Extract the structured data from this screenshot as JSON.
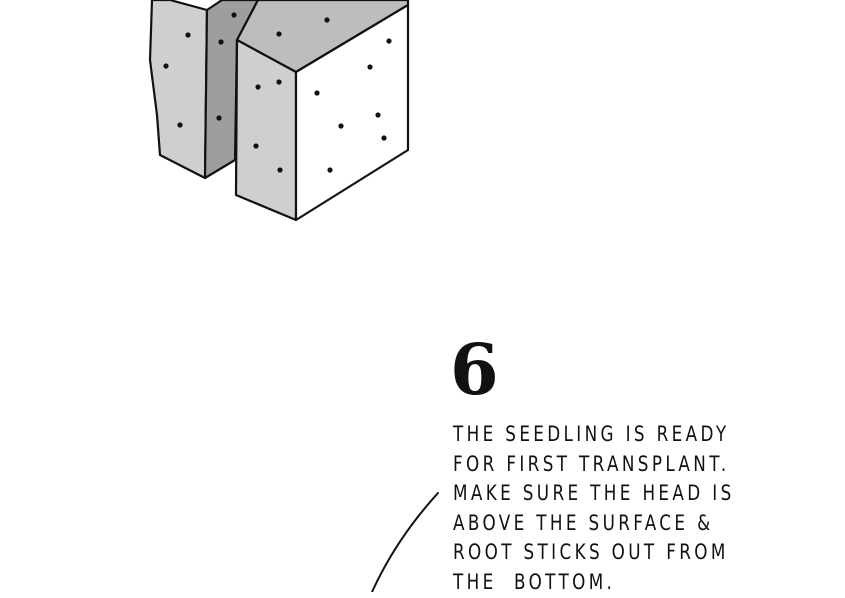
{
  "step": {
    "number": "6",
    "lines": [
      "THE SEEDLING IS READY",
      "FOR FIRST TRANSPLANT.",
      "MAKE SURE THE HEAD IS",
      "ABOVE THE SURFACE &",
      "ROOT STICKS OUT FROM",
      "THE  BOTTOM."
    ]
  },
  "colors": {
    "ink": "#111111",
    "cube_top": "#bdbdbd",
    "cube_side": "#cfcfcf",
    "cube_slot": "#9e9e9e",
    "cube_front": "#ffffff"
  }
}
